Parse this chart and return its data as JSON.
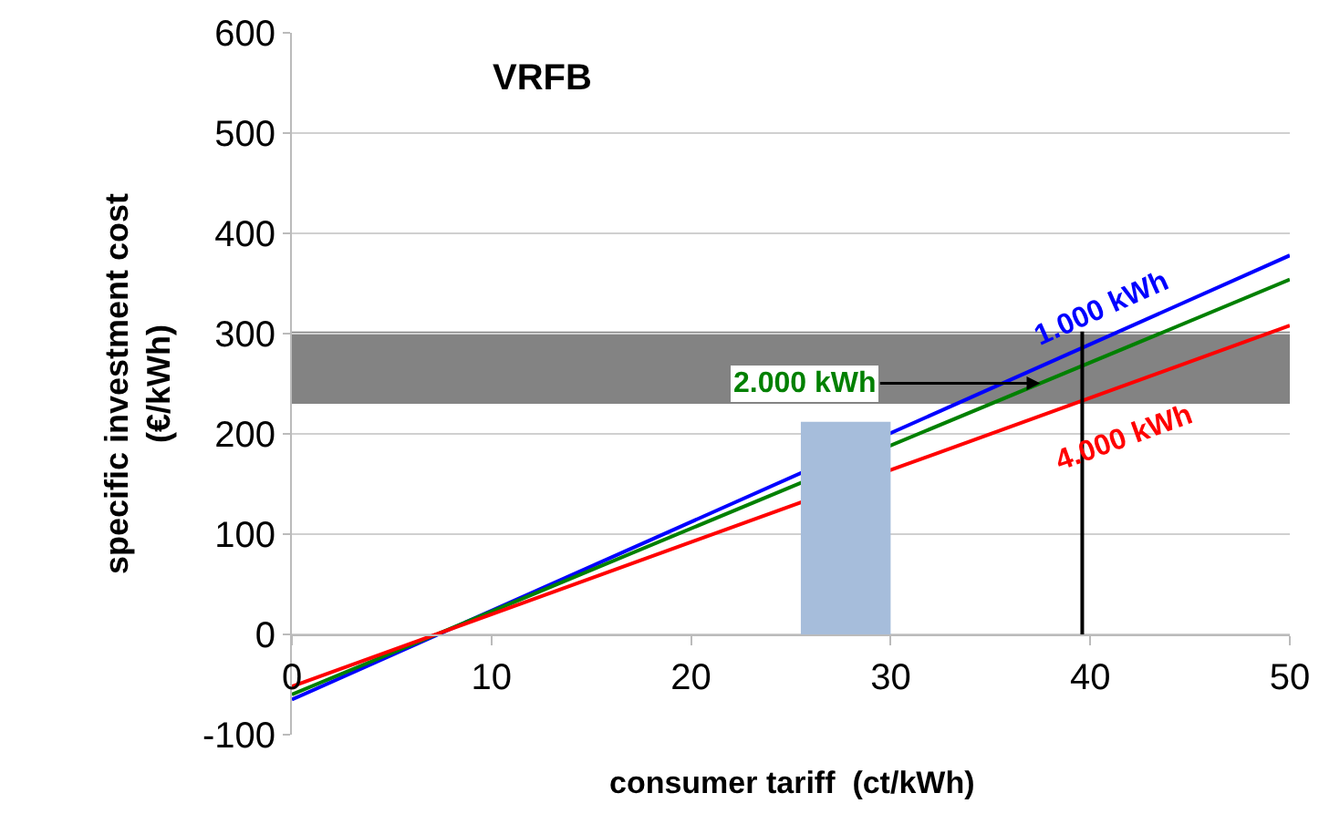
{
  "chart_data": {
    "type": "line",
    "title": "VRFB",
    "xlabel": "consumer tariff  (ct/kWh)",
    "ylabel": "specific investment cost\n(€/kWh)",
    "x": [
      0,
      50
    ],
    "xlim": [
      0,
      50
    ],
    "xticks": [
      0,
      10,
      20,
      30,
      40,
      50
    ],
    "ylim": [
      -100,
      600
    ],
    "yticks": [
      -100,
      0,
      100,
      200,
      300,
      400,
      500,
      600
    ],
    "grid": "y",
    "legend": false,
    "marker": "none",
    "line_style": "solid",
    "series": [
      {
        "name": "1.000 kWh",
        "color": "#0000ff",
        "values": [
          -65,
          378
        ]
      },
      {
        "name": "2.000 kWh",
        "color": "#008000",
        "values": [
          -60,
          354
        ]
      },
      {
        "name": "4.000 kWh",
        "color": "#ff0000",
        "values": [
          -52,
          308
        ]
      },
      {
        "type": "area",
        "color": "#a6bddb",
        "x": [
          25.5,
          30
        ],
        "values": [
          212,
          212
        ]
      },
      {
        "color": "#000000",
        "x": [
          39.6,
          39.6
        ],
        "values": [
          0,
          302
        ]
      }
    ],
    "bands": [
      {
        "axis": "y",
        "from": 230,
        "to": 302,
        "color": "#5a5a5a"
      }
    ]
  }
}
